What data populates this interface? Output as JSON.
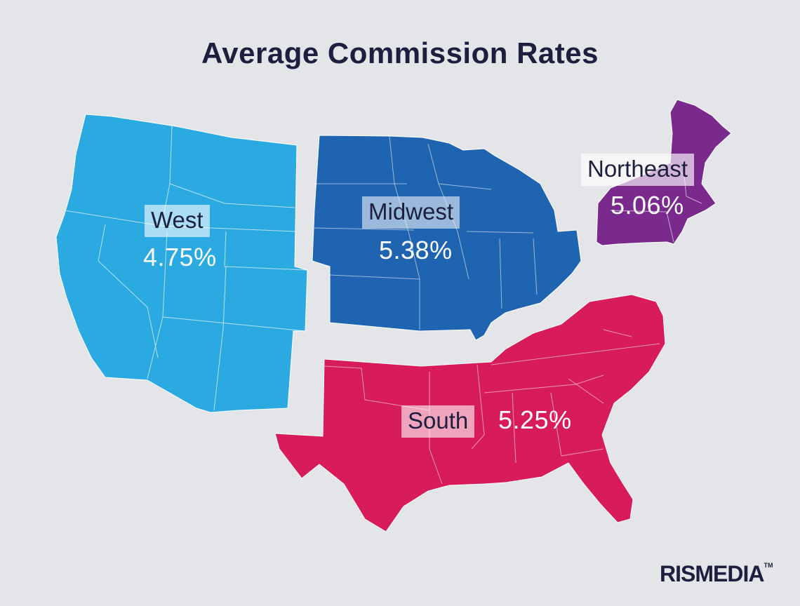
{
  "title": "Average Commission Rates",
  "regions": [
    {
      "id": "west",
      "label": "West",
      "rate": "4.75%",
      "color": "#2baae2"
    },
    {
      "id": "midwest",
      "label": "Midwest",
      "rate": "5.38%",
      "color": "#1f64b0"
    },
    {
      "id": "northeast",
      "label": "Northeast",
      "rate": "5.06%",
      "color": "#7a2a8c"
    },
    {
      "id": "south",
      "label": "South",
      "rate": "5.25%",
      "color": "#d81b5a"
    }
  ],
  "brand": {
    "name": "RISMEDIA",
    "mark": "TM"
  },
  "colors": {
    "background": "#e4e5e9",
    "text": "#1c1f3d",
    "border": "#ffffff"
  }
}
